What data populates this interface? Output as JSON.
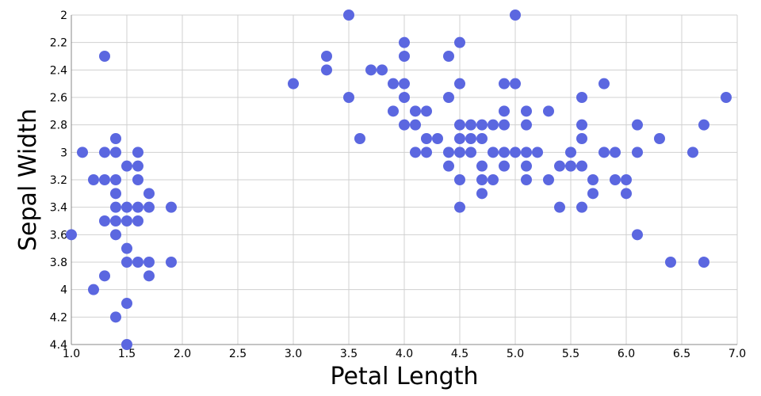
{
  "chart_data": {
    "type": "scatter",
    "title": "",
    "xlabel": "Petal Length",
    "ylabel": "Sepal Width",
    "xlim": [
      1.0,
      7.0
    ],
    "ylim": [
      2.0,
      4.4
    ],
    "y_reversed": true,
    "xticks": [
      "1.0",
      "1.5",
      "2.0",
      "2.5",
      "3.0",
      "3.5",
      "4.0",
      "4.5",
      "5.0",
      "5.5",
      "6.0",
      "6.5",
      "7.0"
    ],
    "yticks": [
      "2",
      "2.2",
      "2.4",
      "2.6",
      "2.8",
      "3",
      "3.2",
      "3.4",
      "3.6",
      "3.8",
      "4",
      "4.2",
      "4.4"
    ],
    "grid": true,
    "marker_color": "#5b67e0",
    "points": [
      [
        1.0,
        3.6
      ],
      [
        1.1,
        3.0
      ],
      [
        1.2,
        3.2
      ],
      [
        1.2,
        4.0
      ],
      [
        1.3,
        2.3
      ],
      [
        1.3,
        3.0
      ],
      [
        1.3,
        3.2
      ],
      [
        1.3,
        3.5
      ],
      [
        1.3,
        3.9
      ],
      [
        1.4,
        2.9
      ],
      [
        1.4,
        3.0
      ],
      [
        1.4,
        3.2
      ],
      [
        1.4,
        3.3
      ],
      [
        1.4,
        3.4
      ],
      [
        1.4,
        3.5
      ],
      [
        1.4,
        3.6
      ],
      [
        1.4,
        4.2
      ],
      [
        1.5,
        3.1
      ],
      [
        1.5,
        3.4
      ],
      [
        1.5,
        3.5
      ],
      [
        1.5,
        3.7
      ],
      [
        1.5,
        3.8
      ],
      [
        1.5,
        4.1
      ],
      [
        1.5,
        4.4
      ],
      [
        1.6,
        3.0
      ],
      [
        1.6,
        3.1
      ],
      [
        1.6,
        3.2
      ],
      [
        1.6,
        3.4
      ],
      [
        1.6,
        3.5
      ],
      [
        1.6,
        3.8
      ],
      [
        1.7,
        3.3
      ],
      [
        1.7,
        3.4
      ],
      [
        1.7,
        3.8
      ],
      [
        1.7,
        3.9
      ],
      [
        1.9,
        3.4
      ],
      [
        1.9,
        3.8
      ],
      [
        3.0,
        2.5
      ],
      [
        3.3,
        2.3
      ],
      [
        3.3,
        2.4
      ],
      [
        3.5,
        2.0
      ],
      [
        3.5,
        2.6
      ],
      [
        3.6,
        2.9
      ],
      [
        3.7,
        2.4
      ],
      [
        3.8,
        2.4
      ],
      [
        3.9,
        2.5
      ],
      [
        3.9,
        2.7
      ],
      [
        4.0,
        2.2
      ],
      [
        4.0,
        2.3
      ],
      [
        4.0,
        2.5
      ],
      [
        4.0,
        2.6
      ],
      [
        4.0,
        2.8
      ],
      [
        4.1,
        2.7
      ],
      [
        4.1,
        2.8
      ],
      [
        4.1,
        3.0
      ],
      [
        4.2,
        2.7
      ],
      [
        4.2,
        2.9
      ],
      [
        4.2,
        3.0
      ],
      [
        4.3,
        2.9
      ],
      [
        4.4,
        2.3
      ],
      [
        4.4,
        2.6
      ],
      [
        4.4,
        3.0
      ],
      [
        4.4,
        3.1
      ],
      [
        4.5,
        2.2
      ],
      [
        4.5,
        2.5
      ],
      [
        4.5,
        2.8
      ],
      [
        4.5,
        2.9
      ],
      [
        4.5,
        3.0
      ],
      [
        4.5,
        3.2
      ],
      [
        4.5,
        3.4
      ],
      [
        4.6,
        2.8
      ],
      [
        4.6,
        2.9
      ],
      [
        4.6,
        3.0
      ],
      [
        4.7,
        2.8
      ],
      [
        4.7,
        2.9
      ],
      [
        4.7,
        3.1
      ],
      [
        4.7,
        3.2
      ],
      [
        4.7,
        3.3
      ],
      [
        4.8,
        2.8
      ],
      [
        4.8,
        3.0
      ],
      [
        4.8,
        3.2
      ],
      [
        4.9,
        2.5
      ],
      [
        4.9,
        2.7
      ],
      [
        4.9,
        2.8
      ],
      [
        4.9,
        3.0
      ],
      [
        4.9,
        3.1
      ],
      [
        5.0,
        2.0
      ],
      [
        5.0,
        2.5
      ],
      [
        5.0,
        3.0
      ],
      [
        5.1,
        2.7
      ],
      [
        5.1,
        2.8
      ],
      [
        5.1,
        3.0
      ],
      [
        5.1,
        3.1
      ],
      [
        5.1,
        3.2
      ],
      [
        5.2,
        3.0
      ],
      [
        5.3,
        2.7
      ],
      [
        5.3,
        3.2
      ],
      [
        5.4,
        3.1
      ],
      [
        5.4,
        3.4
      ],
      [
        5.5,
        3.0
      ],
      [
        5.5,
        3.1
      ],
      [
        5.6,
        2.6
      ],
      [
        5.6,
        2.8
      ],
      [
        5.6,
        2.9
      ],
      [
        5.6,
        3.1
      ],
      [
        5.6,
        3.4
      ],
      [
        5.7,
        3.2
      ],
      [
        5.7,
        3.3
      ],
      [
        5.8,
        2.5
      ],
      [
        5.8,
        3.0
      ],
      [
        5.9,
        3.0
      ],
      [
        5.9,
        3.2
      ],
      [
        6.0,
        3.2
      ],
      [
        6.0,
        3.3
      ],
      [
        6.1,
        2.8
      ],
      [
        6.1,
        3.0
      ],
      [
        6.1,
        3.6
      ],
      [
        6.3,
        2.9
      ],
      [
        6.4,
        3.8
      ],
      [
        6.6,
        3.0
      ],
      [
        6.7,
        2.8
      ],
      [
        6.7,
        3.8
      ],
      [
        6.9,
        2.6
      ]
    ]
  }
}
